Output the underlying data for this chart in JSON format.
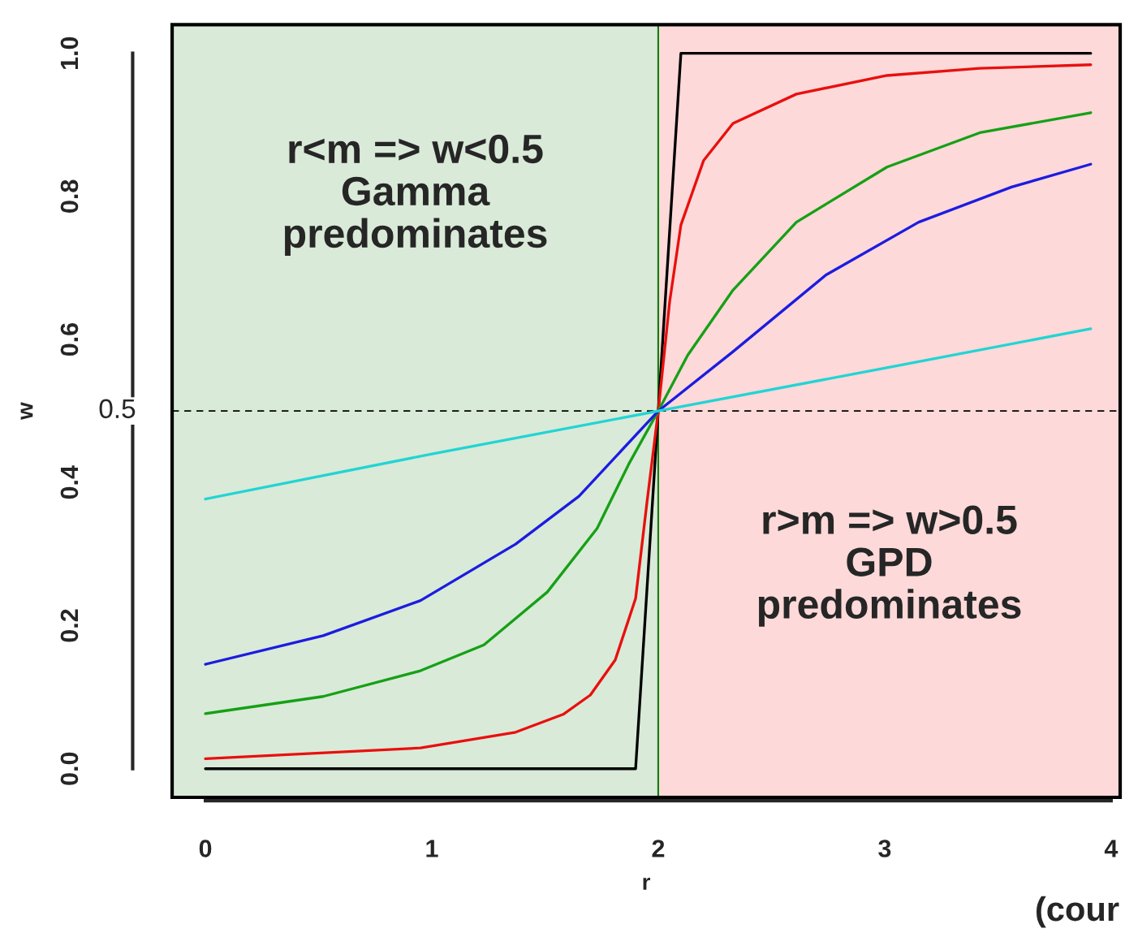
{
  "chart_data": {
    "type": "line",
    "xlabel": "r",
    "ylabel": "w",
    "xlim": [
      -0.147,
      4.04
    ],
    "ylim": [
      -0.04,
      1.04
    ],
    "xticks": [
      0,
      1,
      2,
      3,
      4
    ],
    "yticks": [
      {
        "value": 0,
        "label": "0.0"
      },
      {
        "value": 0.2,
        "label": "0.2"
      },
      {
        "value": 0.4,
        "label": "0.4"
      },
      {
        "value": 0.6,
        "label": "0.6"
      },
      {
        "value": 0.8,
        "label": "0.8"
      },
      {
        "value": 1.0,
        "label": "1.0"
      }
    ],
    "grid": false,
    "legend": false,
    "series": [
      {
        "color": "#000000",
        "x": [
          0,
          1.9,
          2.1,
          3.91
        ],
        "values": [
          0,
          0,
          1.0,
          1.0
        ]
      },
      {
        "color": "#e8100e",
        "x": [
          0,
          0.95,
          1.37,
          1.58,
          1.7,
          1.81,
          1.9,
          1.95,
          2.0,
          2.05,
          2.1,
          2.2,
          2.33,
          2.61,
          3.01,
          3.42,
          3.91
        ],
        "values": [
          0.014,
          0.029,
          0.051,
          0.076,
          0.103,
          0.152,
          0.238,
          0.372,
          0.5,
          0.652,
          0.76,
          0.85,
          0.902,
          0.943,
          0.969,
          0.979,
          0.984
        ]
      },
      {
        "color": "#16a016",
        "x": [
          0,
          0.52,
          0.95,
          1.23,
          1.51,
          1.73,
          1.87,
          2.0,
          2.13,
          2.33,
          2.61,
          3.01,
          3.42,
          3.91
        ],
        "values": [
          0.077,
          0.101,
          0.137,
          0.173,
          0.247,
          0.336,
          0.426,
          0.5,
          0.578,
          0.669,
          0.764,
          0.841,
          0.889,
          0.917
        ]
      },
      {
        "color": "#1c1ce0",
        "x": [
          0,
          0.52,
          0.95,
          1.37,
          1.65,
          2.0,
          2.33,
          2.74,
          3.15,
          3.56,
          3.91
        ],
        "values": [
          0.146,
          0.186,
          0.235,
          0.314,
          0.381,
          0.5,
          0.583,
          0.69,
          0.764,
          0.813,
          0.845
        ]
      },
      {
        "color": "#22d4d4",
        "x": [
          0,
          1,
          2,
          3,
          3.91
        ],
        "values": [
          0.377,
          0.44,
          0.5,
          0.56,
          0.615
        ]
      }
    ],
    "bands": [
      {
        "axis": "x",
        "from": -0.147,
        "to": 2,
        "color": "#d9ead8"
      },
      {
        "axis": "x",
        "from": 2,
        "to": 4.04,
        "color": "#fdd9d9"
      }
    ],
    "ref_lines": [
      {
        "axis": "y",
        "value": 0.5,
        "label": "0.5",
        "line_style": "dashed",
        "color": "#000000"
      }
    ],
    "annotations": [
      "r<m => w<0.5\nGamma\npredominates",
      "r>m => w>0.5\nGPD\npredominates",
      "(cour"
    ]
  }
}
